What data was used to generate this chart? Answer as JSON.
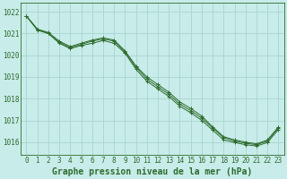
{
  "title": "Graphe pression niveau de la mer (hPa)",
  "background_color": "#c8ece9",
  "grid_color": "#a8d5d0",
  "line_color": "#2d6b2d",
  "ylim": [
    1015.4,
    1022.4
  ],
  "xlim": [
    -0.5,
    23.5
  ],
  "yticks": [
    1016,
    1017,
    1018,
    1019,
    1020,
    1021,
    1022
  ],
  "xticks": [
    0,
    1,
    2,
    3,
    4,
    5,
    6,
    7,
    8,
    9,
    10,
    11,
    12,
    13,
    14,
    15,
    16,
    17,
    18,
    19,
    20,
    21,
    22,
    23
  ],
  "tick_fontsize": 5.5,
  "title_fontsize": 7.0,
  "series": [
    [
      1021.8,
      1021.2,
      1021.0,
      1020.6,
      1020.35,
      1020.5,
      1020.65,
      1020.75,
      1020.65,
      1020.15,
      1019.45,
      1018.9,
      1018.55,
      1018.2,
      1017.75,
      1017.45,
      1017.1,
      1016.65,
      1016.2,
      1016.05,
      1015.95,
      1015.88,
      1016.05,
      1016.65
    ],
    [
      1021.8,
      1021.2,
      1021.05,
      1020.65,
      1020.4,
      1020.55,
      1020.7,
      1020.8,
      1020.7,
      1020.2,
      1019.5,
      1019.0,
      1018.65,
      1018.3,
      1017.85,
      1017.55,
      1017.2,
      1016.7,
      1016.25,
      1016.1,
      1016.0,
      1015.92,
      1016.1,
      1016.7
    ],
    [
      1021.8,
      1021.15,
      1021.0,
      1020.55,
      1020.3,
      1020.45,
      1020.55,
      1020.68,
      1020.55,
      1020.1,
      1019.35,
      1018.8,
      1018.45,
      1018.1,
      1017.65,
      1017.35,
      1017.0,
      1016.55,
      1016.1,
      1015.98,
      1015.88,
      1015.82,
      1015.98,
      1016.58
    ]
  ],
  "lw": 0.7,
  "ms": 2.2
}
